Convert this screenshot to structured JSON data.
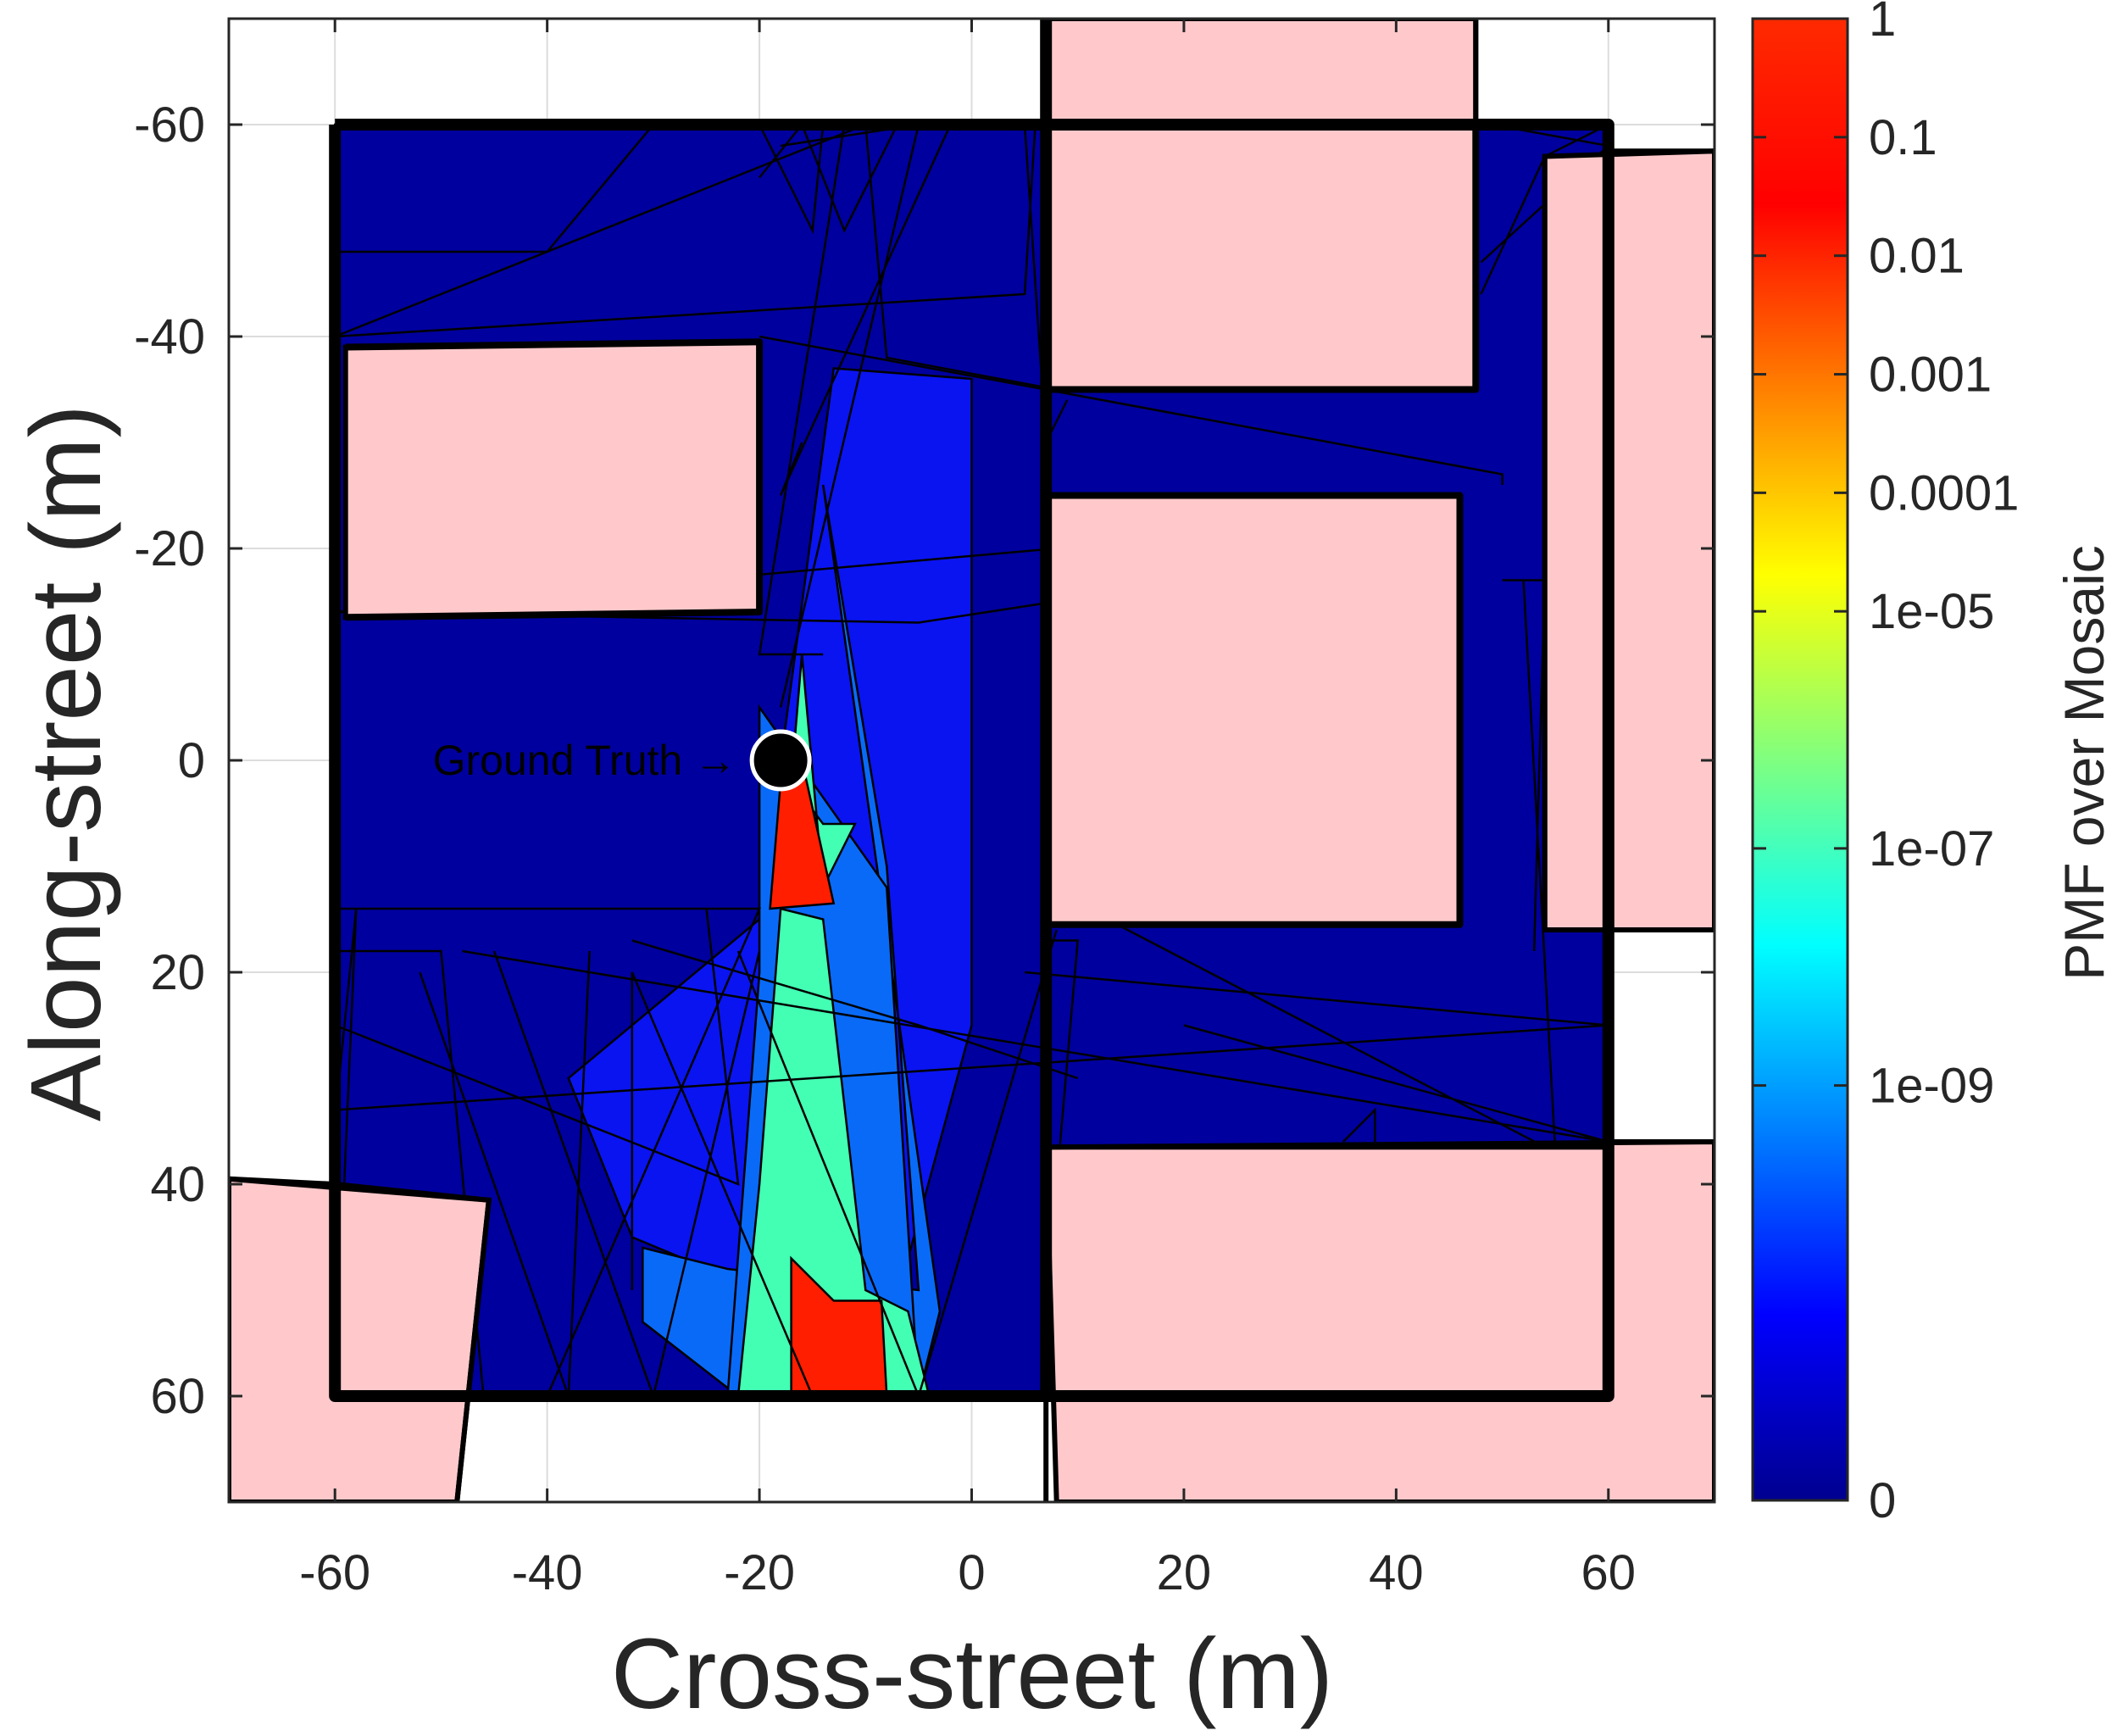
{
  "chart_data": {
    "type": "heatmap",
    "xlabel": "Cross-street (m)",
    "ylabel": "Along-street (m)",
    "xlim": [
      -70,
      70
    ],
    "ylim": [
      -70,
      70
    ],
    "y_direction": "reversed",
    "grid": true,
    "xticks": [
      -60,
      -40,
      -20,
      0,
      20,
      40,
      60
    ],
    "yticks": [
      -60,
      -40,
      -20,
      0,
      20,
      40,
      60
    ],
    "xtick_labels": [
      "-60",
      "-40",
      "-20",
      "0",
      "20",
      "40",
      "60"
    ],
    "ytick_labels": [
      "-60",
      "-40",
      "-20",
      "0",
      "20",
      "40",
      "60"
    ],
    "colorbar": {
      "label": "PMF over Mosaic",
      "scale": "log",
      "ticks": [
        {
          "value": 1,
          "label": "1"
        },
        {
          "value": 0.1,
          "label": "0.1"
        },
        {
          "value": 0.01,
          "label": "0.01"
        },
        {
          "value": 0.001,
          "label": "0.001"
        },
        {
          "value": 0.0001,
          "label": "0.0001"
        },
        {
          "value": 1e-05,
          "label": "1e-05"
        },
        {
          "value": 1e-07,
          "label": "1e-07"
        },
        {
          "value": 1e-09,
          "label": "1e-09"
        },
        {
          "value": 0,
          "label": "0"
        }
      ],
      "colormap": "jet"
    },
    "annotation": {
      "text": "Ground Truth →",
      "x": -18,
      "y": 0
    },
    "ground_truth_marker": {
      "x": -18,
      "y": 0,
      "color": "#000000"
    },
    "buildings": [
      {
        "points": [
          [
            -59,
            -39
          ],
          [
            -20,
            -39.5
          ],
          [
            -20,
            -14
          ],
          [
            -59,
            -13.5
          ]
        ]
      },
      {
        "points": [
          [
            7,
            -60
          ],
          [
            47.5,
            -60
          ],
          [
            47.5,
            -35
          ],
          [
            7,
            -35
          ]
        ]
      },
      {
        "points": [
          [
            7,
            -25
          ],
          [
            46,
            -25
          ],
          [
            46,
            15.5
          ],
          [
            7,
            15.5
          ]
        ]
      },
      {
        "points": [
          [
            54,
            -57
          ],
          [
            70,
            -57.5
          ],
          [
            70,
            16
          ],
          [
            54,
            16
          ]
        ]
      },
      {
        "points": [
          [
            7,
            36.5
          ],
          [
            70,
            36
          ],
          [
            70,
            70
          ],
          [
            8,
            70
          ]
        ]
      },
      {
        "points": [
          [
            -70,
            39.5
          ],
          [
            -45.5,
            41.5
          ],
          [
            -48.5,
            70
          ],
          [
            -70,
            70
          ]
        ]
      },
      {
        "points": [
          [
            7,
            -70
          ],
          [
            47.5,
            -70
          ],
          [
            47.5,
            -60
          ],
          [
            7,
            -60
          ]
        ]
      }
    ],
    "mosaic_polygons": [
      {
        "level": "0",
        "points": [
          [
            -60,
            -60
          ],
          [
            60,
            -60
          ],
          [
            60,
            60
          ],
          [
            -60,
            60
          ]
        ]
      },
      {
        "level": "1e-09",
        "points": [
          [
            -13,
            -37
          ],
          [
            0,
            -36
          ],
          [
            0,
            25
          ],
          [
            -6,
            47
          ],
          [
            -20,
            50
          ],
          [
            -32,
            45
          ],
          [
            -38,
            30
          ],
          [
            -20,
            15
          ]
        ]
      },
      {
        "level": "1e-07",
        "points": [
          [
            -14,
            -26
          ],
          [
            -8,
            10
          ],
          [
            -5,
            50
          ],
          [
            -23,
            48
          ],
          [
            -31,
            46
          ],
          [
            -31,
            53
          ],
          [
            -22,
            60
          ],
          [
            -5,
            60
          ],
          [
            -3,
            52
          ]
        ]
      },
      {
        "level": "1e-07",
        "points": [
          [
            -20,
            -5
          ],
          [
            -8,
            12
          ],
          [
            -5,
            60
          ],
          [
            -23,
            60
          ],
          [
            -20,
            20
          ]
        ]
      },
      {
        "level": "0.0001",
        "points": [
          [
            -18,
            14
          ],
          [
            -14,
            15
          ],
          [
            -10,
            50
          ],
          [
            -6,
            52
          ],
          [
            -4,
            60
          ],
          [
            -22,
            60
          ],
          [
            -20,
            40
          ]
        ]
      },
      {
        "level": "0.0001",
        "points": [
          [
            -16,
            -10
          ],
          [
            -17,
            2
          ],
          [
            -14,
            6
          ],
          [
            -11,
            6
          ],
          [
            -13,
            10
          ],
          [
            -14,
            12
          ]
        ]
      },
      {
        "level": "1",
        "points": [
          [
            -18,
            2
          ],
          [
            -16,
            0
          ],
          [
            -13,
            13.5
          ],
          [
            -19,
            14
          ]
        ]
      },
      {
        "level": "1",
        "points": [
          [
            -17,
            47
          ],
          [
            -13,
            51
          ],
          [
            -8.5,
            51
          ],
          [
            -8,
            60
          ],
          [
            -17,
            60
          ]
        ]
      }
    ]
  }
}
